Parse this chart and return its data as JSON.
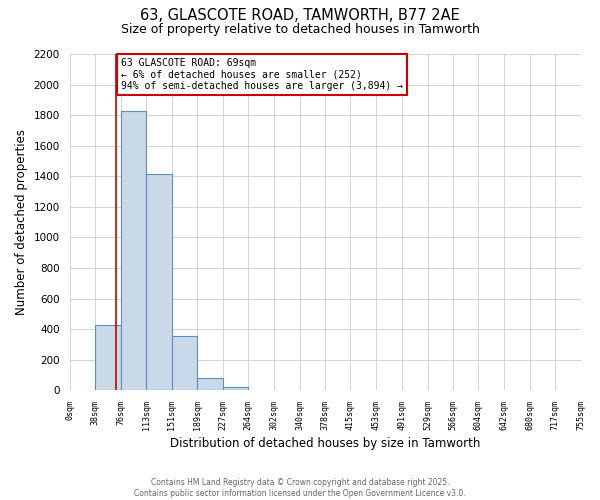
{
  "title": "63, GLASCOTE ROAD, TAMWORTH, B77 2AE",
  "subtitle": "Size of property relative to detached houses in Tamworth",
  "xlabel": "Distribution of detached houses by size in Tamworth",
  "ylabel": "Number of detached properties",
  "bar_edges": [
    0,
    38,
    76,
    113,
    151,
    189,
    227,
    264,
    302,
    340,
    378,
    415,
    453,
    491,
    529,
    566,
    604,
    642,
    680,
    717,
    755
  ],
  "bar_heights": [
    0,
    430,
    1830,
    1415,
    355,
    80,
    25,
    0,
    0,
    0,
    0,
    0,
    0,
    0,
    0,
    0,
    0,
    0,
    0,
    0
  ],
  "bar_color": "#c9d9e8",
  "bar_edgecolor": "#5a8fc0",
  "property_line_x": 69,
  "property_line_color": "#cc0000",
  "annotation_title": "63 GLASCOTE ROAD: 69sqm",
  "annotation_line1": "← 6% of detached houses are smaller (252)",
  "annotation_line2": "94% of semi-detached houses are larger (3,894) →",
  "annotation_box_color": "#ffffff",
  "annotation_box_edgecolor": "#cc0000",
  "ylim": [
    0,
    2200
  ],
  "yticks": [
    0,
    200,
    400,
    600,
    800,
    1000,
    1200,
    1400,
    1600,
    1800,
    2000,
    2200
  ],
  "grid_color": "#cccccc",
  "background_color": "#ffffff",
  "footer_line1": "Contains HM Land Registry data © Crown copyright and database right 2025.",
  "footer_line2": "Contains public sector information licensed under the Open Government Licence v3.0."
}
